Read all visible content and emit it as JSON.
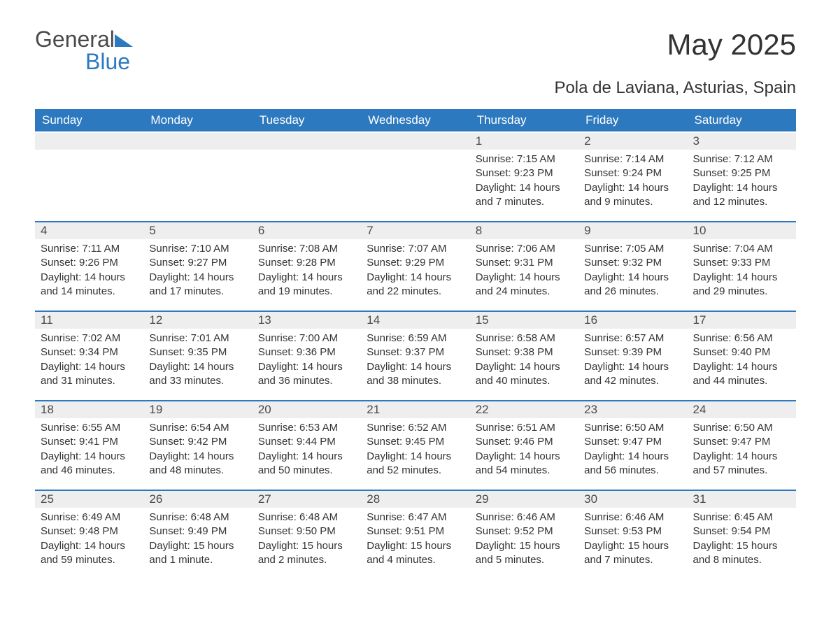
{
  "logo": {
    "word1": "General",
    "word2": "Blue"
  },
  "title": "May 2025",
  "subtitle": "Pola de Laviana, Asturias, Spain",
  "colors": {
    "header_bg": "#2d79bf",
    "header_text": "#ffffff",
    "day_num_bg": "#eeeeee",
    "border_top": "#2d79bf",
    "text": "#333333"
  },
  "weekdays": [
    "Sunday",
    "Monday",
    "Tuesday",
    "Wednesday",
    "Thursday",
    "Friday",
    "Saturday"
  ],
  "weeks": [
    [
      null,
      null,
      null,
      null,
      {
        "n": "1",
        "sunrise": "7:15 AM",
        "sunset": "9:23 PM",
        "daylight": "14 hours and 7 minutes."
      },
      {
        "n": "2",
        "sunrise": "7:14 AM",
        "sunset": "9:24 PM",
        "daylight": "14 hours and 9 minutes."
      },
      {
        "n": "3",
        "sunrise": "7:12 AM",
        "sunset": "9:25 PM",
        "daylight": "14 hours and 12 minutes."
      }
    ],
    [
      {
        "n": "4",
        "sunrise": "7:11 AM",
        "sunset": "9:26 PM",
        "daylight": "14 hours and 14 minutes."
      },
      {
        "n": "5",
        "sunrise": "7:10 AM",
        "sunset": "9:27 PM",
        "daylight": "14 hours and 17 minutes."
      },
      {
        "n": "6",
        "sunrise": "7:08 AM",
        "sunset": "9:28 PM",
        "daylight": "14 hours and 19 minutes."
      },
      {
        "n": "7",
        "sunrise": "7:07 AM",
        "sunset": "9:29 PM",
        "daylight": "14 hours and 22 minutes."
      },
      {
        "n": "8",
        "sunrise": "7:06 AM",
        "sunset": "9:31 PM",
        "daylight": "14 hours and 24 minutes."
      },
      {
        "n": "9",
        "sunrise": "7:05 AM",
        "sunset": "9:32 PM",
        "daylight": "14 hours and 26 minutes."
      },
      {
        "n": "10",
        "sunrise": "7:04 AM",
        "sunset": "9:33 PM",
        "daylight": "14 hours and 29 minutes."
      }
    ],
    [
      {
        "n": "11",
        "sunrise": "7:02 AM",
        "sunset": "9:34 PM",
        "daylight": "14 hours and 31 minutes."
      },
      {
        "n": "12",
        "sunrise": "7:01 AM",
        "sunset": "9:35 PM",
        "daylight": "14 hours and 33 minutes."
      },
      {
        "n": "13",
        "sunrise": "7:00 AM",
        "sunset": "9:36 PM",
        "daylight": "14 hours and 36 minutes."
      },
      {
        "n": "14",
        "sunrise": "6:59 AM",
        "sunset": "9:37 PM",
        "daylight": "14 hours and 38 minutes."
      },
      {
        "n": "15",
        "sunrise": "6:58 AM",
        "sunset": "9:38 PM",
        "daylight": "14 hours and 40 minutes."
      },
      {
        "n": "16",
        "sunrise": "6:57 AM",
        "sunset": "9:39 PM",
        "daylight": "14 hours and 42 minutes."
      },
      {
        "n": "17",
        "sunrise": "6:56 AM",
        "sunset": "9:40 PM",
        "daylight": "14 hours and 44 minutes."
      }
    ],
    [
      {
        "n": "18",
        "sunrise": "6:55 AM",
        "sunset": "9:41 PM",
        "daylight": "14 hours and 46 minutes."
      },
      {
        "n": "19",
        "sunrise": "6:54 AM",
        "sunset": "9:42 PM",
        "daylight": "14 hours and 48 minutes."
      },
      {
        "n": "20",
        "sunrise": "6:53 AM",
        "sunset": "9:44 PM",
        "daylight": "14 hours and 50 minutes."
      },
      {
        "n": "21",
        "sunrise": "6:52 AM",
        "sunset": "9:45 PM",
        "daylight": "14 hours and 52 minutes."
      },
      {
        "n": "22",
        "sunrise": "6:51 AM",
        "sunset": "9:46 PM",
        "daylight": "14 hours and 54 minutes."
      },
      {
        "n": "23",
        "sunrise": "6:50 AM",
        "sunset": "9:47 PM",
        "daylight": "14 hours and 56 minutes."
      },
      {
        "n": "24",
        "sunrise": "6:50 AM",
        "sunset": "9:47 PM",
        "daylight": "14 hours and 57 minutes."
      }
    ],
    [
      {
        "n": "25",
        "sunrise": "6:49 AM",
        "sunset": "9:48 PM",
        "daylight": "14 hours and 59 minutes."
      },
      {
        "n": "26",
        "sunrise": "6:48 AM",
        "sunset": "9:49 PM",
        "daylight": "15 hours and 1 minute."
      },
      {
        "n": "27",
        "sunrise": "6:48 AM",
        "sunset": "9:50 PM",
        "daylight": "15 hours and 2 minutes."
      },
      {
        "n": "28",
        "sunrise": "6:47 AM",
        "sunset": "9:51 PM",
        "daylight": "15 hours and 4 minutes."
      },
      {
        "n": "29",
        "sunrise": "6:46 AM",
        "sunset": "9:52 PM",
        "daylight": "15 hours and 5 minutes."
      },
      {
        "n": "30",
        "sunrise": "6:46 AM",
        "sunset": "9:53 PM",
        "daylight": "15 hours and 7 minutes."
      },
      {
        "n": "31",
        "sunrise": "6:45 AM",
        "sunset": "9:54 PM",
        "daylight": "15 hours and 8 minutes."
      }
    ]
  ],
  "labels": {
    "sunrise": "Sunrise: ",
    "sunset": "Sunset: ",
    "daylight": "Daylight: "
  }
}
